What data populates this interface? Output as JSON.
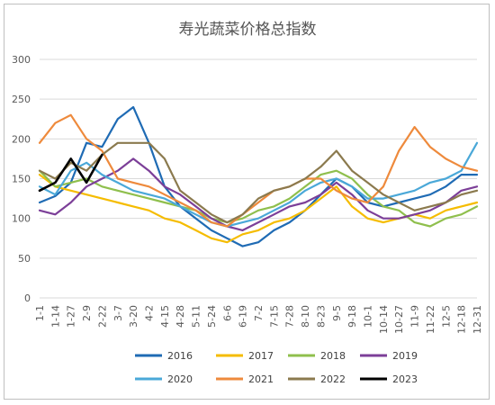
{
  "chart_data": {
    "type": "line",
    "title": "寿光蔬菜价格总指数",
    "x_ticks": [
      "1-1",
      "1-14",
      "1-27",
      "2-9",
      "2-22",
      "3-7",
      "3-20",
      "4-2",
      "4-15",
      "4-28",
      "5-11",
      "5-24",
      "6-6",
      "6-19",
      "7-2",
      "7-15",
      "7-28",
      "8-10",
      "8-23",
      "9-5",
      "9-18",
      "10-1",
      "10-14",
      "10-27",
      "11-9",
      "11-22",
      "12-5",
      "12-18",
      "12-31"
    ],
    "y_ticks": [
      0,
      50,
      100,
      150,
      200,
      250,
      300
    ],
    "ylim": [
      0,
      300
    ],
    "grid": "horizontal",
    "legend_position": "bottom",
    "series": [
      {
        "name": "2016",
        "color": "#1f6bb4",
        "values": [
          120,
          128,
          145,
          195,
          190,
          225,
          240,
          195,
          140,
          115,
          100,
          85,
          75,
          65,
          70,
          85,
          95,
          110,
          130,
          150,
          140,
          120,
          115,
          120,
          125,
          130,
          140,
          155,
          155
        ]
      },
      {
        "name": "2017",
        "color": "#f5bc00",
        "values": [
          155,
          140,
          135,
          130,
          125,
          120,
          115,
          110,
          100,
          95,
          85,
          75,
          70,
          80,
          85,
          95,
          100,
          110,
          125,
          140,
          115,
          100,
          95,
          100,
          105,
          100,
          110,
          115,
          120
        ]
      },
      {
        "name": "2018",
        "color": "#8fbf4d",
        "values": [
          160,
          140,
          145,
          150,
          140,
          135,
          130,
          125,
          120,
          115,
          110,
          100,
          95,
          100,
          110,
          115,
          125,
          140,
          155,
          160,
          150,
          130,
          115,
          110,
          95,
          90,
          100,
          105,
          115
        ]
      },
      {
        "name": "2019",
        "color": "#7c3f98",
        "values": [
          110,
          105,
          120,
          140,
          150,
          160,
          175,
          160,
          140,
          130,
          115,
          100,
          90,
          85,
          95,
          105,
          115,
          120,
          130,
          145,
          130,
          110,
          100,
          100,
          105,
          110,
          120,
          135,
          140
        ]
      },
      {
        "name": "2020",
        "color": "#4aa8d8",
        "values": [
          140,
          130,
          160,
          170,
          155,
          145,
          135,
          130,
          125,
          115,
          105,
          95,
          90,
          95,
          100,
          110,
          120,
          135,
          145,
          150,
          140,
          125,
          125,
          130,
          135,
          145,
          150,
          160,
          195
        ]
      },
      {
        "name": "2021",
        "color": "#ee8a3c",
        "values": [
          195,
          220,
          230,
          200,
          185,
          150,
          145,
          140,
          130,
          120,
          110,
          95,
          90,
          105,
          120,
          135,
          140,
          150,
          150,
          135,
          125,
          120,
          140,
          185,
          215,
          190,
          175,
          165,
          160
        ]
      },
      {
        "name": "2022",
        "color": "#8b7a4e",
        "values": [
          160,
          150,
          170,
          160,
          180,
          195,
          195,
          195,
          175,
          135,
          120,
          105,
          95,
          105,
          125,
          135,
          140,
          150,
          165,
          185,
          160,
          145,
          130,
          120,
          110,
          115,
          120,
          130,
          135
        ]
      },
      {
        "name": "2023",
        "color": "#000000",
        "values": [
          135,
          145,
          175,
          145,
          180,
          null,
          null,
          null,
          null,
          null,
          null,
          null,
          null,
          null,
          null,
          null,
          null,
          null,
          null,
          null,
          null,
          null,
          null,
          null,
          null,
          null,
          null,
          null,
          null
        ]
      }
    ]
  }
}
